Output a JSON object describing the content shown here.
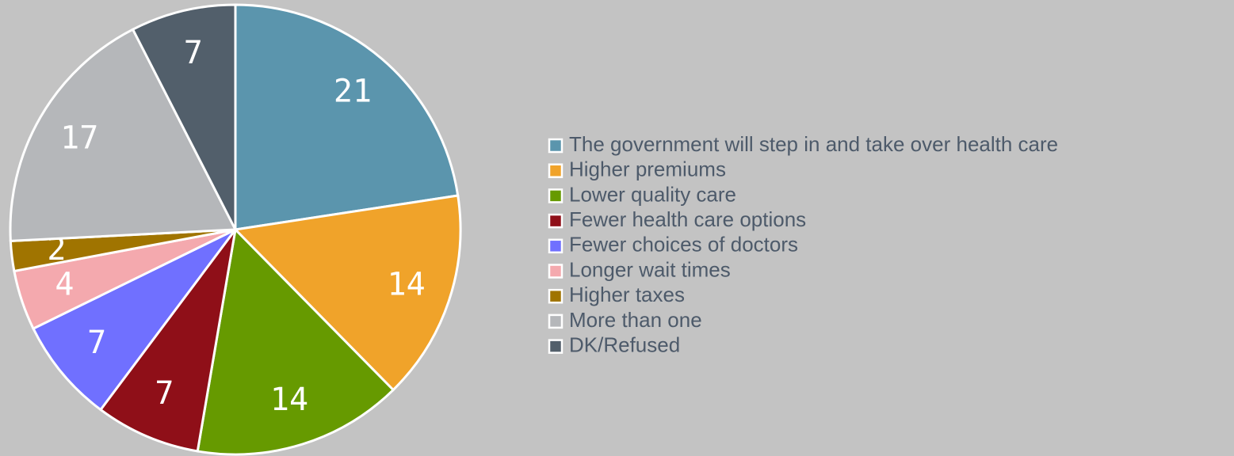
{
  "chart_data": {
    "type": "pie",
    "categories": [
      "The government will step in and take over health care",
      "Higher premiums",
      "Lower quality care",
      "Fewer health care options",
      "Fewer choices of doctors",
      "Longer wait times",
      "Higher taxes",
      "More than one",
      "DK/Refused"
    ],
    "values": [
      21,
      14,
      14,
      7,
      7,
      4,
      2,
      17,
      7
    ],
    "colors": [
      "#5b95ad",
      "#f0a32a",
      "#669a00",
      "#8f0f18",
      "#7070ff",
      "#f4a9ae",
      "#a07400",
      "#b5b7ba",
      "#525f6b"
    ]
  }
}
